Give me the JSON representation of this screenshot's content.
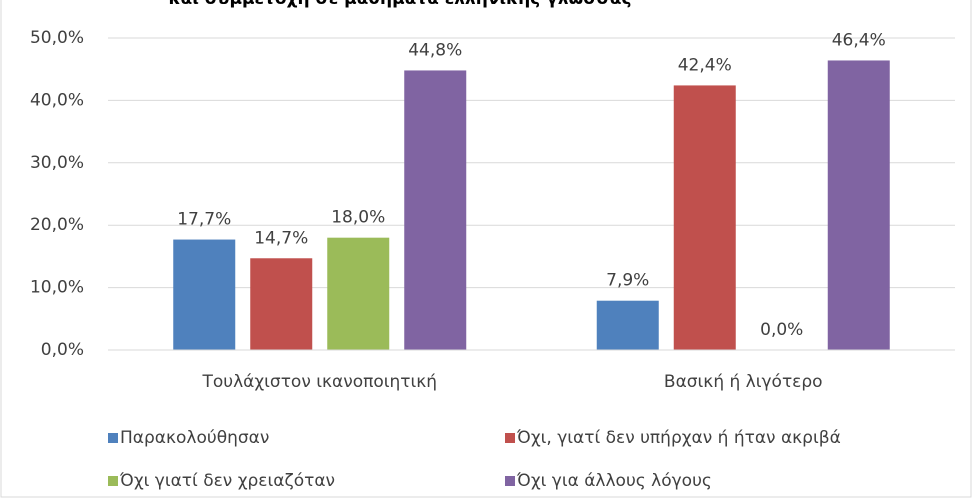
{
  "chart_data": {
    "type": "bar",
    "title": "και συμμετοχή σε μαθήματα ελληνικής γλώσσας",
    "categories": [
      "Τουλάχιστον ικανοποιητική",
      "Βασική ή λιγότερο"
    ],
    "series": [
      {
        "name": "Παρακολούθησαν",
        "color": "#4f81bd",
        "values": [
          17.7,
          7.9
        ],
        "value_labels": [
          "17,7%",
          "7,9%"
        ]
      },
      {
        "name": "Όχι, γιατί δεν υπήρχαν ή ήταν ακριβά",
        "color": "#c0504d",
        "values": [
          14.7,
          42.4
        ],
        "value_labels": [
          "14,7%",
          "42,4%"
        ]
      },
      {
        "name": "Όχι γιατί δεν χρειαζόταν",
        "color": "#9bbb59",
        "values": [
          18.0,
          0.0
        ],
        "value_labels": [
          "18,0%",
          "0,0%"
        ]
      },
      {
        "name": "Όχι για άλλους λόγους",
        "color": "#8064a2",
        "values": [
          44.8,
          46.4
        ],
        "value_labels": [
          "44,8%",
          "46,4%"
        ]
      }
    ],
    "ylim": [
      0,
      50
    ],
    "yticks": [
      {
        "value": 0,
        "label": "0,0%"
      },
      {
        "value": 10,
        "label": "10,0%"
      },
      {
        "value": 20,
        "label": "20,0%"
      },
      {
        "value": 30,
        "label": "30,0%"
      },
      {
        "value": 40,
        "label": "40,0%"
      },
      {
        "value": 50,
        "label": "50,0%"
      }
    ],
    "grid": true,
    "legend": "bottom"
  }
}
